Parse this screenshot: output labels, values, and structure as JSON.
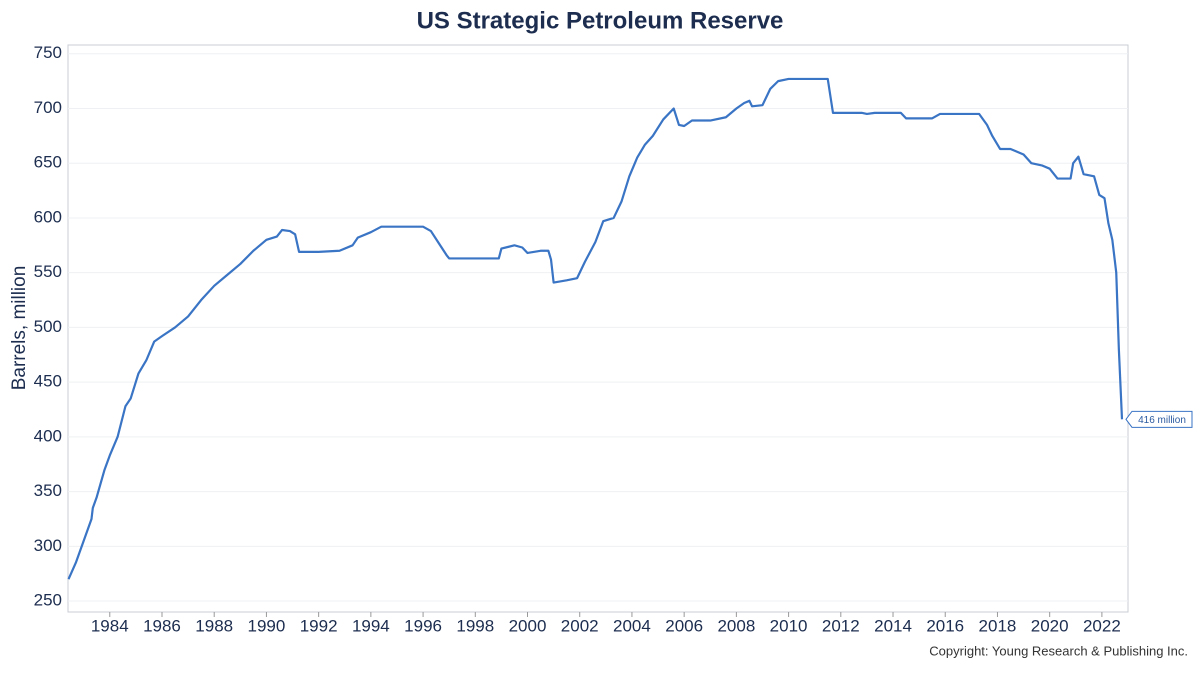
{
  "chart_data": {
    "type": "line",
    "title": "US Strategic Petroleum Reserve",
    "y_label": "Barrels, million",
    "copyright": "Copyright: Young Research & Publishing Inc.",
    "x": [
      1982.42,
      1982.7,
      1983.0,
      1983.3,
      1983.35,
      1983.5,
      1983.8,
      1984.0,
      1984.3,
      1984.6,
      1984.8,
      1985.1,
      1985.4,
      1985.7,
      1986.0,
      1986.5,
      1987.0,
      1987.5,
      1988.0,
      1988.5,
      1989.0,
      1989.5,
      1990.0,
      1990.4,
      1990.6,
      1990.9,
      1991.1,
      1991.25,
      1992.0,
      1992.8,
      1993.3,
      1993.5,
      1994.0,
      1994.4,
      1995.0,
      1996.0,
      1996.3,
      1996.6,
      1996.9,
      1997.0,
      1998.0,
      1998.9,
      1999.0,
      1999.5,
      1999.8,
      2000.0,
      2000.5,
      2000.8,
      2000.9,
      2001.0,
      2001.5,
      2001.9,
      2002.2,
      2002.6,
      2002.9,
      2003.3,
      2003.6,
      2003.9,
      2004.2,
      2004.5,
      2004.8,
      2005.2,
      2005.6,
      2005.8,
      2006.0,
      2006.3,
      2007.0,
      2007.6,
      2008.0,
      2008.3,
      2008.5,
      2008.6,
      2009.0,
      2009.3,
      2009.6,
      2010.0,
      2011.5,
      2011.7,
      2012.8,
      2013.0,
      2013.3,
      2014.3,
      2014.5,
      2015.5,
      2015.8,
      2016.5,
      2017.3,
      2017.6,
      2017.8,
      2018.1,
      2018.5,
      2019.0,
      2019.3,
      2019.7,
      2020.0,
      2020.3,
      2020.8,
      2020.9,
      2021.1,
      2021.3,
      2021.7,
      2021.9,
      2022.1,
      2022.25,
      2022.4,
      2022.55,
      2022.65,
      2022.77
    ],
    "values": [
      270,
      285,
      305,
      325,
      335,
      345,
      370,
      383,
      400,
      428,
      435,
      458,
      470,
      487,
      492,
      500,
      510,
      525,
      538,
      548,
      558,
      570,
      580,
      583,
      589,
      588,
      585,
      569,
      569,
      570,
      575,
      582,
      587,
      592,
      592,
      592,
      588,
      577,
      566,
      563,
      563,
      563,
      572,
      575,
      573,
      568,
      570,
      570,
      562,
      541,
      543,
      545,
      560,
      578,
      597,
      600,
      615,
      638,
      655,
      667,
      675,
      690,
      700,
      685,
      684,
      689,
      689,
      692,
      700,
      705,
      707,
      702,
      703,
      718,
      725,
      727,
      727,
      696,
      696,
      695,
      696,
      696,
      691,
      691,
      695,
      695,
      695,
      685,
      675,
      663,
      663,
      658,
      650,
      648,
      645,
      636,
      636,
      650,
      656,
      640,
      638,
      621,
      618,
      595,
      580,
      550,
      480,
      416
    ],
    "value_labels": [
      null,
      null,
      null,
      null,
      null,
      null,
      null,
      null,
      null,
      null,
      null,
      null,
      null,
      null,
      null,
      null,
      null,
      null,
      null,
      null,
      null,
      null,
      null,
      null,
      null,
      null,
      null,
      null,
      null,
      null,
      null,
      null,
      null,
      null,
      null,
      null,
      null,
      null,
      null,
      null,
      null,
      null,
      null,
      null,
      null,
      null,
      null,
      null,
      null,
      null,
      null,
      null,
      null,
      null,
      null,
      null,
      null,
      null,
      null,
      null,
      null,
      null,
      null,
      null,
      null,
      null,
      null,
      null,
      null,
      null,
      null,
      null,
      null,
      null,
      null,
      null,
      null,
      null,
      null,
      null,
      null,
      null,
      null,
      null,
      null,
      null,
      null,
      null,
      null,
      null,
      null,
      null,
      null,
      null,
      null,
      null,
      null,
      null,
      null,
      null,
      null,
      null,
      null,
      null,
      null,
      null,
      null,
      "416 million"
    ],
    "color": "#3a74c4",
    "xlim": [
      1982.4,
      2023.0
    ],
    "xticks": [
      1984,
      1986,
      1988,
      1990,
      1992,
      1994,
      1996,
      1998,
      2000,
      2002,
      2004,
      2006,
      2008,
      2010,
      2012,
      2014,
      2016,
      2018,
      2020,
      2022
    ],
    "ylim": [
      240,
      758
    ],
    "yticks": [
      250,
      300,
      350,
      400,
      450,
      500,
      550,
      600,
      650,
      700,
      750
    ],
    "grid": true
  }
}
